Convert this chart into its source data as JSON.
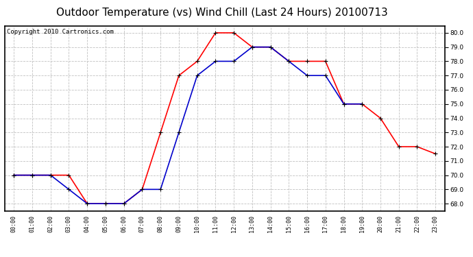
{
  "title": "Outdoor Temperature (vs) Wind Chill (Last 24 Hours) 20100713",
  "copyright_text": "Copyright 2010 Cartronics.com",
  "x_labels": [
    "00:00",
    "01:00",
    "02:00",
    "03:00",
    "04:00",
    "05:00",
    "06:00",
    "07:00",
    "08:00",
    "09:00",
    "10:00",
    "11:00",
    "12:00",
    "13:00",
    "14:00",
    "15:00",
    "16:00",
    "17:00",
    "18:00",
    "19:00",
    "20:00",
    "21:00",
    "22:00",
    "23:00"
  ],
  "temp_red": [
    70.0,
    70.0,
    70.0,
    70.0,
    68.0,
    68.0,
    68.0,
    69.0,
    73.0,
    77.0,
    78.0,
    80.0,
    80.0,
    79.0,
    79.0,
    78.0,
    78.0,
    78.0,
    75.0,
    75.0,
    74.0,
    72.0,
    72.0,
    71.5
  ],
  "wind_chill_blue": [
    70.0,
    70.0,
    70.0,
    69.0,
    68.0,
    68.0,
    68.0,
    69.0,
    69.0,
    73.0,
    77.0,
    78.0,
    78.0,
    79.0,
    79.0,
    78.0,
    77.0,
    77.0,
    75.0,
    75.0,
    null,
    null,
    null,
    null
  ],
  "ylim": [
    67.5,
    80.5
  ],
  "yticks": [
    68.0,
    69.0,
    70.0,
    71.0,
    72.0,
    73.0,
    74.0,
    75.0,
    76.0,
    77.0,
    78.0,
    79.0,
    80.0
  ],
  "red_color": "#ff0000",
  "blue_color": "#0000cc",
  "bg_color": "#ffffff",
  "plot_bg_color": "#ffffff",
  "grid_color": "#c0c0c0",
  "title_fontsize": 11,
  "copyright_fontsize": 6.5
}
